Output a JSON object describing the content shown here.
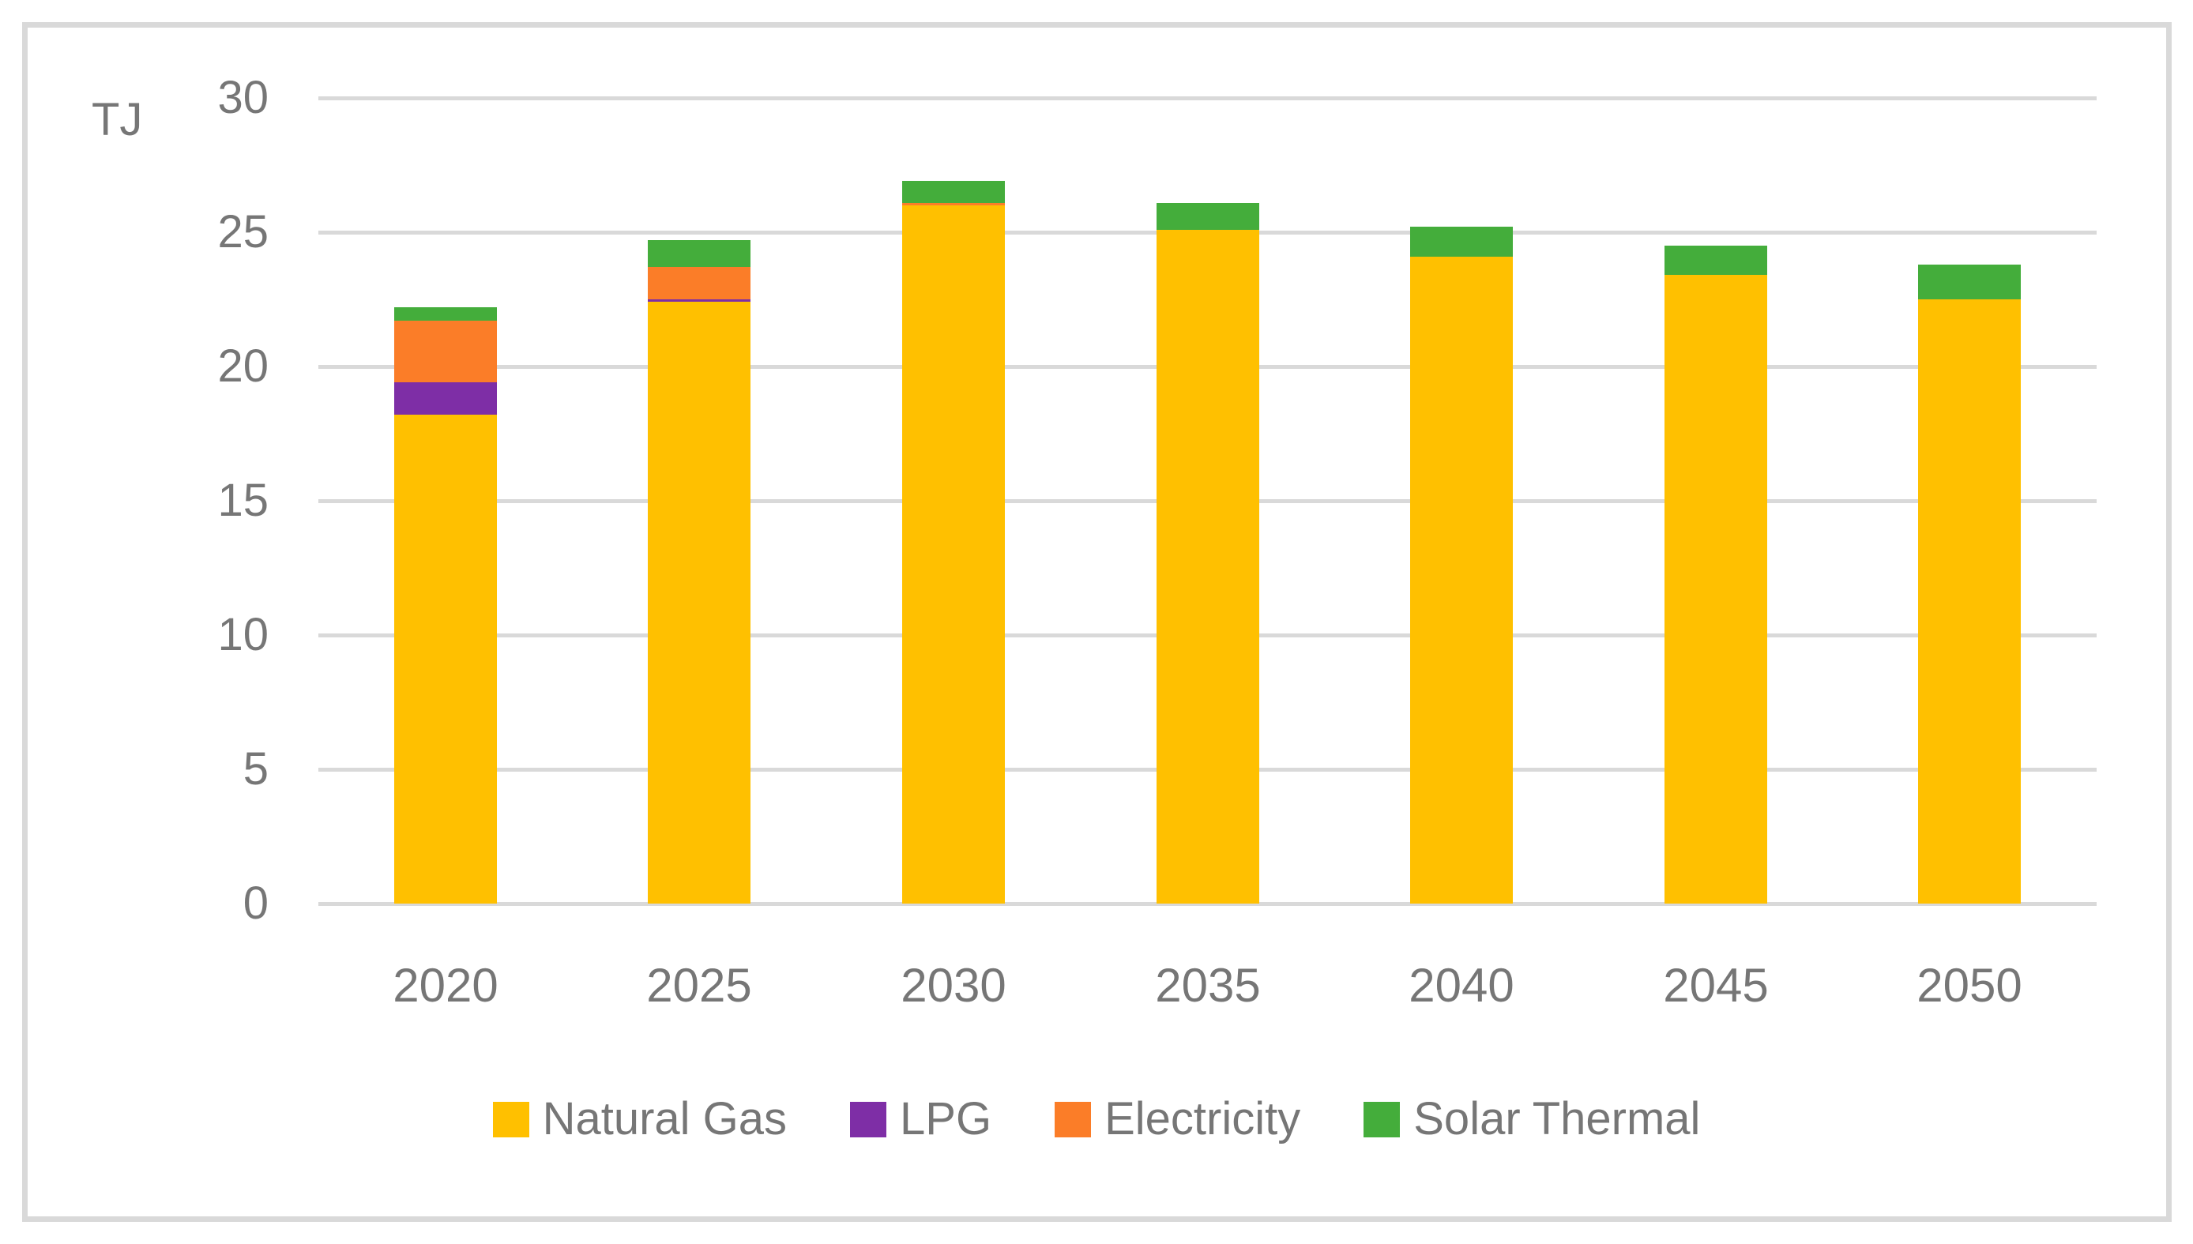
{
  "colors": {
    "background": "#FFFFFF",
    "frame_border": "#D9D9D9",
    "gridline": "#D9D9D9",
    "label_text": "#767676"
  },
  "chart_data": {
    "type": "bar",
    "stacked": true,
    "title": "",
    "ylabel": "TJ",
    "xlabel": "",
    "categories": [
      "2020",
      "2025",
      "2030",
      "2035",
      "2040",
      "2045",
      "2050"
    ],
    "series": [
      {
        "name": "Natural Gas",
        "color": "#FFC000",
        "values": [
          18.2,
          22.4,
          26.0,
          25.1,
          24.1,
          23.4,
          22.5
        ]
      },
      {
        "name": "LPG",
        "color": "#7E2EA6",
        "values": [
          1.2,
          0.1,
          0.0,
          0.0,
          0.0,
          0.0,
          0.0
        ]
      },
      {
        "name": "Electricity",
        "color": "#FB7D28",
        "values": [
          2.3,
          1.2,
          0.1,
          0.0,
          0.0,
          0.0,
          0.0
        ]
      },
      {
        "name": "Solar Thermal",
        "color": "#44AD3B",
        "values": [
          0.5,
          1.0,
          0.8,
          1.0,
          1.1,
          1.1,
          1.3
        ]
      }
    ],
    "stack_totals": [
      22.2,
      24.7,
      26.9,
      26.1,
      25.2,
      24.5,
      23.8
    ],
    "yticks": [
      0,
      5,
      10,
      15,
      20,
      25,
      30
    ],
    "ylim": [
      0,
      30
    ],
    "grid": true,
    "legend_position": "bottom"
  }
}
